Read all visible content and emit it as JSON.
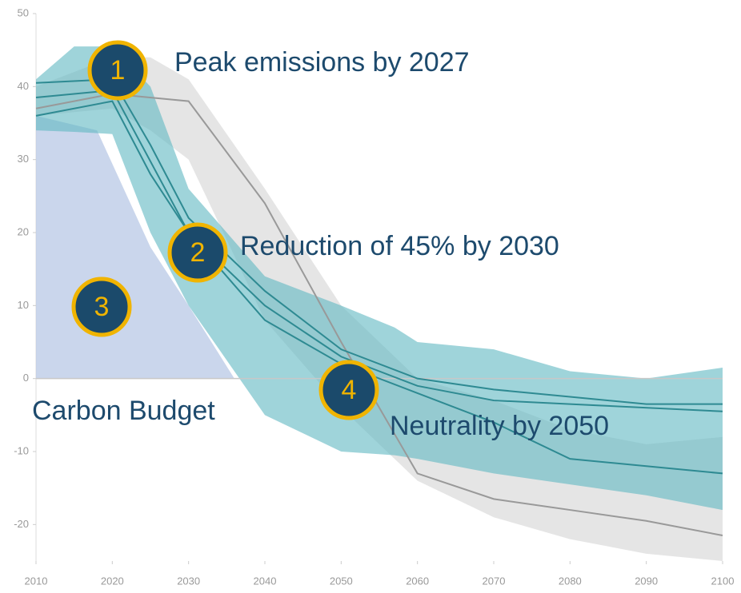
{
  "chart_data": {
    "type": "line",
    "xlim": [
      2010,
      2100
    ],
    "ylim": [
      -25,
      50
    ],
    "xticks": [
      2010,
      2020,
      2030,
      2040,
      2050,
      2060,
      2070,
      2080,
      2090,
      2100
    ],
    "yticks": [
      -20,
      -10,
      0,
      10,
      20,
      30,
      40,
      50
    ],
    "budget": {
      "color": "#b8c8e6",
      "x": [
        2010,
        2018,
        2025,
        2030,
        2036
      ],
      "values": [
        36,
        34,
        18,
        10,
        0
      ]
    },
    "bands": [
      {
        "color": "#d3d3d3",
        "x": [
          2010,
          2020,
          2025,
          2030,
          2040,
          2050,
          2060,
          2070,
          2080,
          2090,
          2100
        ],
        "upper": [
          40,
          44,
          44,
          41,
          26,
          10,
          0,
          -3,
          -7,
          -9,
          -8
        ],
        "lower": [
          36,
          37,
          34,
          30,
          8,
          -4,
          -14,
          -19,
          -22,
          -24,
          -25
        ]
      },
      {
        "color": "#5fb8c2",
        "x": [
          2010,
          2015,
          2020,
          2025,
          2030,
          2040,
          2050,
          2057,
          2060,
          2070,
          2080,
          2090,
          2100
        ],
        "upper": [
          41,
          45.5,
          45.5,
          40,
          26,
          14,
          10,
          7,
          5,
          4,
          1,
          0,
          1.5
        ],
        "lower": [
          34,
          33.8,
          33.5,
          20,
          10,
          -5,
          -10,
          -10.5,
          -11,
          -13,
          -14.5,
          -16,
          -18
        ]
      }
    ],
    "series": [
      {
        "color": "#999999",
        "x": [
          2010,
          2020,
          2030,
          2040,
          2050,
          2060,
          2070,
          2080,
          2090,
          2100
        ],
        "values": [
          37,
          39,
          38,
          24,
          5,
          -13,
          -16.5,
          -18,
          -19.5,
          -21.5
        ]
      },
      {
        "color": "#2e8a92",
        "x": [
          2010,
          2020,
          2025,
          2030,
          2040,
          2050,
          2060,
          2070,
          2080,
          2090,
          2100
        ],
        "values": [
          40.5,
          41,
          32,
          22,
          12,
          4,
          0,
          -1.5,
          -2.5,
          -3.5,
          -3.5
        ]
      },
      {
        "color": "#2e8a92",
        "x": [
          2010,
          2020,
          2030,
          2040,
          2050,
          2060,
          2070,
          2080,
          2100
        ],
        "values": [
          38.5,
          39.5,
          20,
          10,
          3,
          -1,
          -3,
          -3.5,
          -4.5
        ]
      },
      {
        "color": "#2e8a92",
        "x": [
          2010,
          2020,
          2025,
          2030,
          2040,
          2050,
          2060,
          2070,
          2080,
          2090,
          2100
        ],
        "values": [
          36,
          38,
          28,
          20,
          8,
          2,
          -2,
          -6,
          -11,
          -12,
          -13
        ]
      }
    ],
    "annotations": [
      {
        "marker": "1",
        "text": "Peak emissions by 2027"
      },
      {
        "marker": "2",
        "text": "Reduction of 45% by 2030"
      },
      {
        "marker": "3",
        "text": "Carbon Budget"
      },
      {
        "marker": "4",
        "text": "Neutrality by 2050"
      }
    ]
  }
}
